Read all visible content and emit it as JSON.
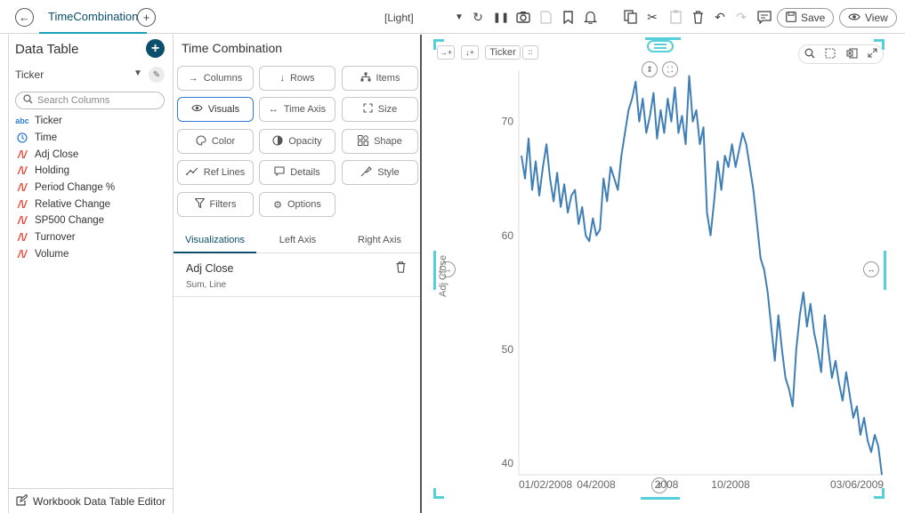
{
  "topbar": {
    "tab_title": "TimeCombination",
    "theme": "[Light]",
    "save_label": "Save",
    "view_label": "View"
  },
  "left_panel": {
    "title": "Data Table",
    "ticker_value": "Ticker",
    "search_placeholder": "Search Columns",
    "columns": [
      {
        "label": "Ticker",
        "type": "text",
        "icon": "abc-text-icon"
      },
      {
        "label": "Time",
        "type": "time",
        "icon": "clock-icon"
      },
      {
        "label": "Adj Close",
        "type": "numeric",
        "icon": "numeric-icon"
      },
      {
        "label": "Holding",
        "type": "numeric",
        "icon": "numeric-icon"
      },
      {
        "label": "Period Change %",
        "type": "numeric",
        "icon": "numeric-icon"
      },
      {
        "label": "Relative Change",
        "type": "numeric",
        "icon": "numeric-icon"
      },
      {
        "label": "SP500 Change",
        "type": "numeric",
        "icon": "numeric-icon"
      },
      {
        "label": "Turnover",
        "type": "numeric",
        "icon": "numeric-icon"
      },
      {
        "label": "Volume",
        "type": "numeric",
        "icon": "numeric-icon"
      }
    ],
    "footer_label": "Workbook Data Table Editor"
  },
  "middle_panel": {
    "title": "Time Combination",
    "buttons": [
      {
        "label": "Columns",
        "icon": "arrow-right-icon"
      },
      {
        "label": "Rows",
        "icon": "arrow-down-icon"
      },
      {
        "label": "Items",
        "icon": "hierarchy-icon"
      },
      {
        "label": "Visuals",
        "icon": "eye-icon"
      },
      {
        "label": "Time Axis",
        "icon": "horizontal-arrows-icon"
      },
      {
        "label": "Size",
        "icon": "resize-icon"
      },
      {
        "label": "Color",
        "icon": "palette-icon"
      },
      {
        "label": "Opacity",
        "icon": "opacity-icon"
      },
      {
        "label": "Shape",
        "icon": "shapes-icon"
      },
      {
        "label": "Ref Lines",
        "icon": "ref-lines-icon"
      },
      {
        "label": "Details",
        "icon": "comment-icon"
      },
      {
        "label": "Style",
        "icon": "style-icon"
      },
      {
        "label": "Filters",
        "icon": "filter-icon"
      },
      {
        "label": "Options",
        "icon": "gear-icon"
      }
    ],
    "tabs": [
      "Visualizations",
      "Left Axis",
      "Right Axis"
    ],
    "visualization": {
      "name": "Adj Close",
      "subtitle": "Sum, Line"
    }
  },
  "chart": {
    "ticker_button": "Ticker",
    "y_axis_label": "Adj Close",
    "colors": {
      "line": "#3f7fb5",
      "handle": "#56d0d8"
    }
  },
  "chart_data": {
    "type": "line",
    "title": "",
    "xlabel": "",
    "ylabel": "Adj Close",
    "ylim": [
      39,
      74.5
    ],
    "yticks": [
      40,
      50,
      60,
      70
    ],
    "xticks": [
      "01/02/2008",
      "04/2008",
      "2008",
      "10/2008",
      "03/06/2009"
    ],
    "series": [
      {
        "values": [
          67,
          65,
          68.5,
          64,
          66.5,
          63.5,
          66,
          68,
          65,
          63,
          65.5,
          62.5,
          64.5,
          62,
          63.5,
          64,
          61,
          62.5,
          60,
          59.5,
          61.5,
          60,
          60.5,
          65,
          63,
          66,
          65,
          64,
          67,
          69,
          71,
          72,
          73.5,
          70,
          72,
          69,
          70.5,
          72.5,
          68.5,
          71,
          69,
          72,
          70,
          73,
          69,
          70.5,
          68,
          74,
          70,
          71,
          68,
          69.5,
          62,
          60,
          63,
          66.5,
          64,
          67,
          66,
          68,
          66,
          67.5,
          69,
          68,
          66,
          64,
          61,
          58,
          57,
          55,
          52,
          49,
          53,
          50,
          47.5,
          46.5,
          45,
          50,
          53,
          55,
          52,
          54,
          51.5,
          50,
          48,
          53,
          50,
          47.5,
          49,
          47,
          45.5,
          48,
          46,
          44,
          45,
          42.5,
          44,
          42,
          41,
          42.5,
          41.5,
          39
        ]
      }
    ],
    "grid": false,
    "legend": "none"
  }
}
